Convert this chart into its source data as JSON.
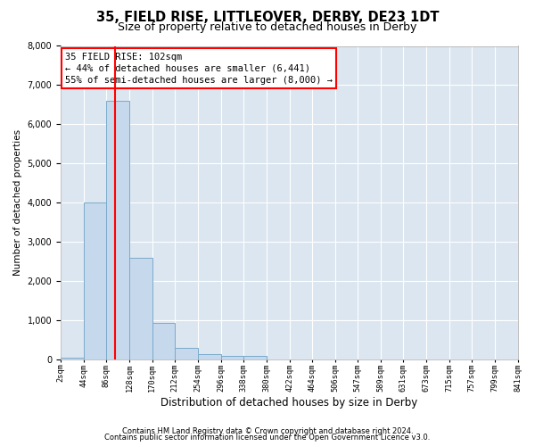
{
  "title1": "35, FIELD RISE, LITTLEOVER, DERBY, DE23 1DT",
  "title2": "Size of property relative to detached houses in Derby",
  "xlabel": "Distribution of detached houses by size in Derby",
  "ylabel": "Number of detached properties",
  "bin_edges": [
    2,
    44,
    86,
    128,
    170,
    212,
    254,
    296,
    338,
    380,
    422,
    464,
    506,
    547,
    589,
    631,
    673,
    715,
    757,
    799,
    841
  ],
  "bar_heights": [
    50,
    4000,
    6600,
    2600,
    950,
    300,
    150,
    100,
    100,
    0,
    0,
    0,
    0,
    0,
    0,
    0,
    0,
    0,
    0,
    0
  ],
  "bar_color": "#c5d8ec",
  "bar_edge_color": "#7aaacb",
  "bg_color": "#dce6f0",
  "grid_color": "#ffffff",
  "red_line_x": 102,
  "annotation_text_line1": "35 FIELD RISE: 102sqm",
  "annotation_text_line2": "← 44% of detached houses are smaller (6,441)",
  "annotation_text_line3": "55% of semi-detached houses are larger (8,000) →",
  "ylim": [
    0,
    8000
  ],
  "yticks": [
    0,
    1000,
    2000,
    3000,
    4000,
    5000,
    6000,
    7000,
    8000
  ],
  "tick_labels": [
    "2sqm",
    "44sqm",
    "86sqm",
    "128sqm",
    "170sqm",
    "212sqm",
    "254sqm",
    "296sqm",
    "338sqm",
    "380sqm",
    "422sqm",
    "464sqm",
    "506sqm",
    "547sqm",
    "589sqm",
    "631sqm",
    "673sqm",
    "715sqm",
    "757sqm",
    "799sqm",
    "841sqm"
  ],
  "footer1": "Contains HM Land Registry data © Crown copyright and database right 2024.",
  "footer2": "Contains public sector information licensed under the Open Government Licence v3.0.",
  "title1_fontsize": 10.5,
  "title2_fontsize": 9,
  "xlabel_fontsize": 8.5,
  "ylabel_fontsize": 7.5,
  "annotation_fontsize": 7.5,
  "footer_fontsize": 6
}
